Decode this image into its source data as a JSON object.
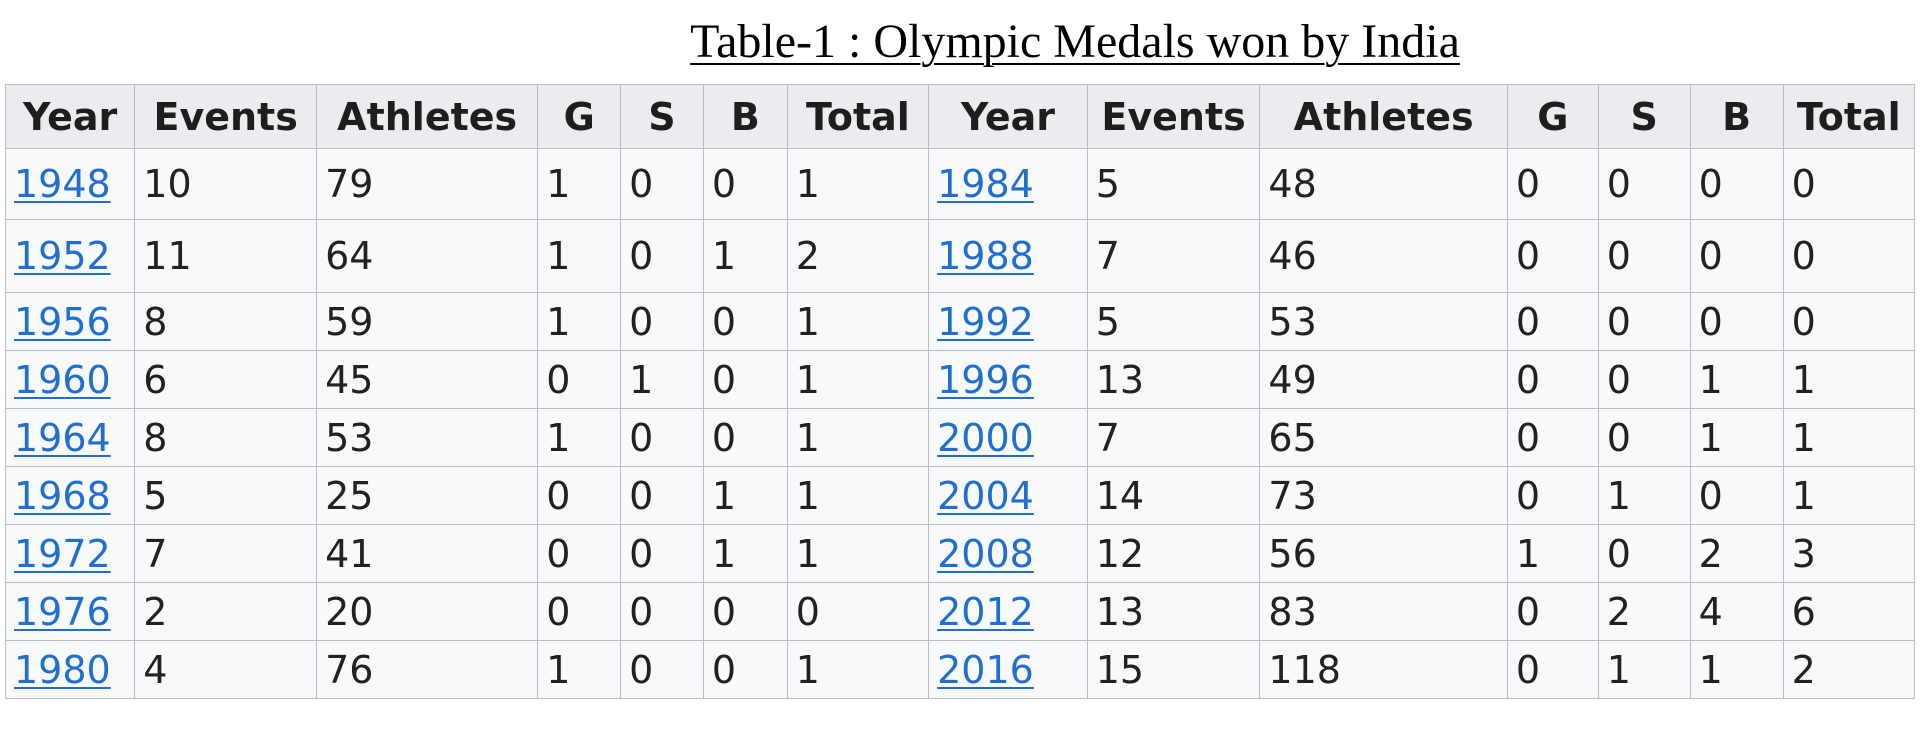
{
  "title": "Table-1 : Olympic Medals won by India",
  "columns": [
    "Year",
    "Events",
    "Athletes",
    "G",
    "S",
    "B",
    "Total",
    "Year",
    "Events",
    "Athletes",
    "G",
    "S",
    "B",
    "Total"
  ],
  "rows": [
    [
      {
        "year": "1948",
        "events": "10",
        "athletes": "79",
        "g": "1",
        "s": "0",
        "b": "0",
        "total": "1"
      },
      {
        "year": "1984",
        "events": "5",
        "athletes": "48",
        "g": "0",
        "s": "0",
        "b": "0",
        "total": "0"
      }
    ],
    [
      {
        "year": "1952",
        "events": "11",
        "athletes": "64",
        "g": "1",
        "s": "0",
        "b": "1",
        "total": "2"
      },
      {
        "year": "1988",
        "events": "7",
        "athletes": "46",
        "g": "0",
        "s": "0",
        "b": "0",
        "total": "0"
      }
    ],
    [
      {
        "year": "1956",
        "events": "8",
        "athletes": "59",
        "g": "1",
        "s": "0",
        "b": "0",
        "total": "1"
      },
      {
        "year": "1992",
        "events": "5",
        "athletes": "53",
        "g": "0",
        "s": "0",
        "b": "0",
        "total": "0"
      }
    ],
    [
      {
        "year": "1960",
        "events": "6",
        "athletes": "45",
        "g": "0",
        "s": "1",
        "b": "0",
        "total": "1"
      },
      {
        "year": "1996",
        "events": "13",
        "athletes": "49",
        "g": "0",
        "s": "0",
        "b": "1",
        "total": "1"
      }
    ],
    [
      {
        "year": "1964",
        "events": "8",
        "athletes": "53",
        "g": "1",
        "s": "0",
        "b": "0",
        "total": "1"
      },
      {
        "year": "2000",
        "events": "7",
        "athletes": "65",
        "g": "0",
        "s": "0",
        "b": "1",
        "total": "1"
      }
    ],
    [
      {
        "year": "1968",
        "events": "5",
        "athletes": "25",
        "g": "0",
        "s": "0",
        "b": "1",
        "total": "1"
      },
      {
        "year": "2004",
        "events": "14",
        "athletes": "73",
        "g": "0",
        "s": "1",
        "b": "0",
        "total": "1"
      }
    ],
    [
      {
        "year": "1972",
        "events": "7",
        "athletes": "41",
        "g": "0",
        "s": "0",
        "b": "1",
        "total": "1"
      },
      {
        "year": "2008",
        "events": "12",
        "athletes": "56",
        "g": "1",
        "s": "0",
        "b": "2",
        "total": "3"
      }
    ],
    [
      {
        "year": "1976",
        "events": "2",
        "athletes": "20",
        "g": "0",
        "s": "0",
        "b": "0",
        "total": "0"
      },
      {
        "year": "2012",
        "events": "13",
        "athletes": "83",
        "g": "0",
        "s": "2",
        "b": "4",
        "total": "6"
      }
    ],
    [
      {
        "year": "1980",
        "events": "4",
        "athletes": "76",
        "g": "1",
        "s": "0",
        "b": "0",
        "total": "1"
      },
      {
        "year": "2016",
        "events": "15",
        "athletes": "118",
        "g": "0",
        "s": "1",
        "b": "1",
        "total": "2"
      }
    ]
  ],
  "colors": {
    "link": "#1f6fd1",
    "header_bg": "#eaecf0",
    "cell_bg": "#f8f9fa",
    "border": "#b8bcc4"
  }
}
